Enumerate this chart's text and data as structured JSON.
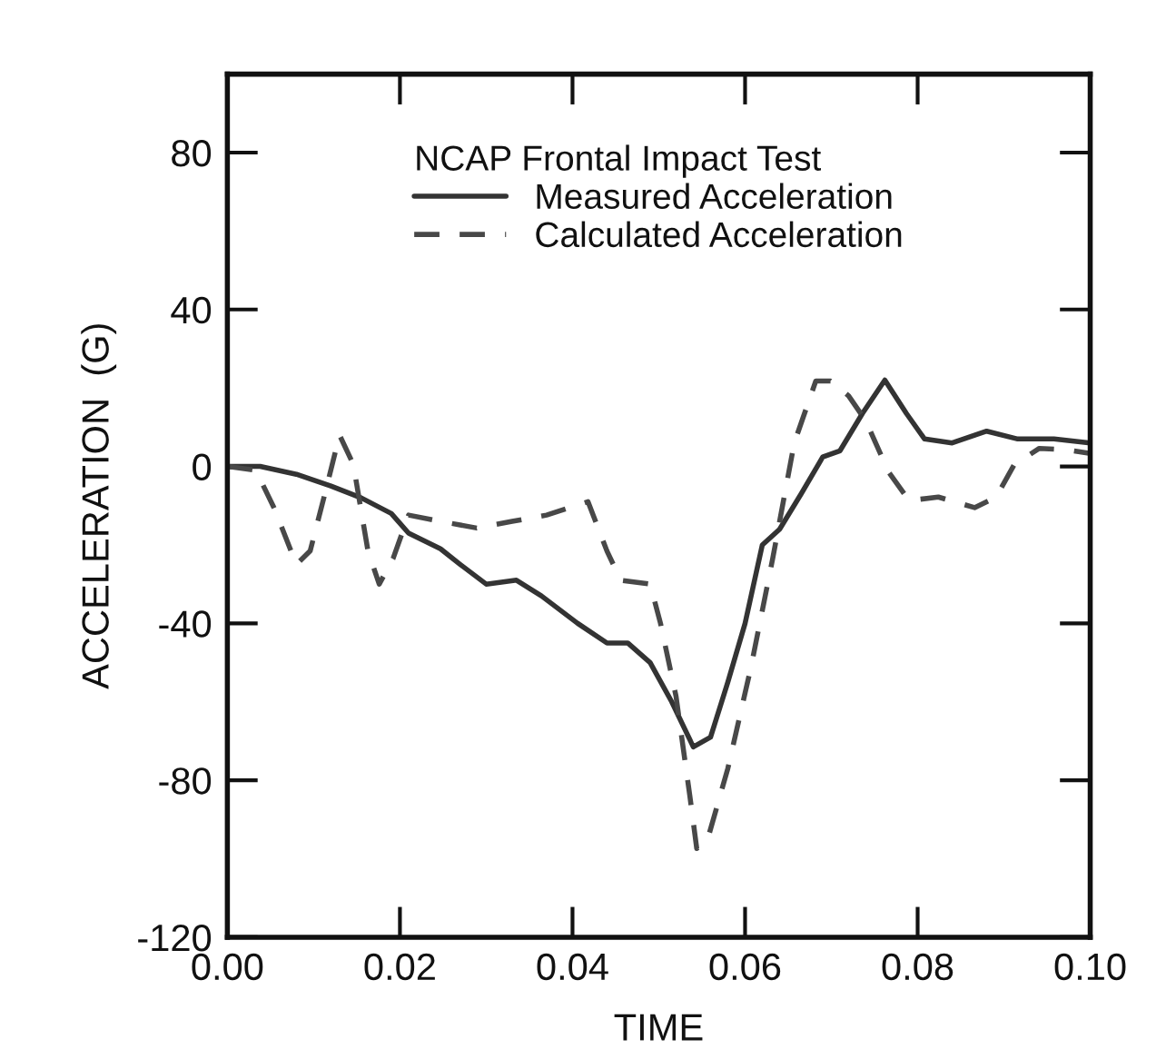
{
  "chart_data": {
    "type": "line",
    "xlabel": "TIME",
    "ylabel": "ACCELERATION  (G)",
    "legend_title": "NCAP Frontal Impact Test",
    "legend": "top",
    "grid": false,
    "xlim": [
      0.0,
      0.1
    ],
    "xticks": [
      {
        "value": 0.0,
        "label": "0.00"
      },
      {
        "value": 0.02,
        "label": "0.02"
      },
      {
        "value": 0.04,
        "label": "0.04"
      },
      {
        "value": 0.06,
        "label": "0.06"
      },
      {
        "value": 0.08,
        "label": "0.08"
      },
      {
        "value": 0.1,
        "label": "0.10"
      }
    ],
    "ylim": [
      -120,
      100
    ],
    "yticks": [
      -120,
      -80,
      -40,
      0,
      40,
      80
    ],
    "series": [
      {
        "name": "Measured Acceleration",
        "color": "#333333",
        "line_style": "solid",
        "x": [
          0,
          0.0038,
          0.008,
          0.012,
          0.0155,
          0.019,
          0.021,
          0.0247,
          0.027,
          0.03,
          0.0335,
          0.0364,
          0.0406,
          0.044,
          0.0464,
          0.049,
          0.0515,
          0.054,
          0.056,
          0.058,
          0.06,
          0.062,
          0.064,
          0.0665,
          0.069,
          0.071,
          0.0736,
          0.0762,
          0.0787,
          0.0808,
          0.084,
          0.088,
          0.0916,
          0.0958,
          0.1
        ],
        "values": [
          0,
          0,
          -2,
          -5,
          -8,
          -12,
          -17,
          -21,
          -25,
          -30,
          -29,
          -33,
          -40,
          -45,
          -45,
          -50,
          -60,
          -71.5,
          -69,
          -55,
          -40,
          -20,
          -16,
          -7,
          2.4,
          4,
          13.5,
          22,
          13.5,
          7,
          6,
          9,
          7,
          7,
          6
        ]
      },
      {
        "name": "Calculated Acceleration",
        "color": "#484848",
        "line_style": "dashed",
        "x": [
          0,
          0.0033,
          0.0054,
          0.008,
          0.0096,
          0.0113,
          0.013,
          0.0146,
          0.0163,
          0.0176,
          0.0192,
          0.021,
          0.0247,
          0.0289,
          0.033,
          0.037,
          0.0418,
          0.044,
          0.0456,
          0.049,
          0.0502,
          0.052,
          0.0536,
          0.0544,
          0.0556,
          0.058,
          0.0607,
          0.0632,
          0.0657,
          0.0682,
          0.0699,
          0.072,
          0.074,
          0.0766,
          0.079,
          0.0824,
          0.0866,
          0.0891,
          0.0912,
          0.0941,
          0.0975,
          0.1
        ],
        "values": [
          0,
          -1,
          -10.5,
          -25,
          -21.5,
          -7,
          8,
          0.5,
          -21.6,
          -30,
          -23.5,
          -12.4,
          -14,
          -15.7,
          -14,
          -12.4,
          -9,
          -21.6,
          -29,
          -30,
          -40,
          -58.6,
          -84,
          -97.4,
          -95.5,
          -77,
          -51,
          -23.5,
          6,
          21.8,
          21.8,
          18,
          11.6,
          -1.3,
          -8.7,
          -7.8,
          -10.5,
          -7.8,
          0.5,
          4.6,
          4.2,
          3.3
        ]
      }
    ]
  }
}
